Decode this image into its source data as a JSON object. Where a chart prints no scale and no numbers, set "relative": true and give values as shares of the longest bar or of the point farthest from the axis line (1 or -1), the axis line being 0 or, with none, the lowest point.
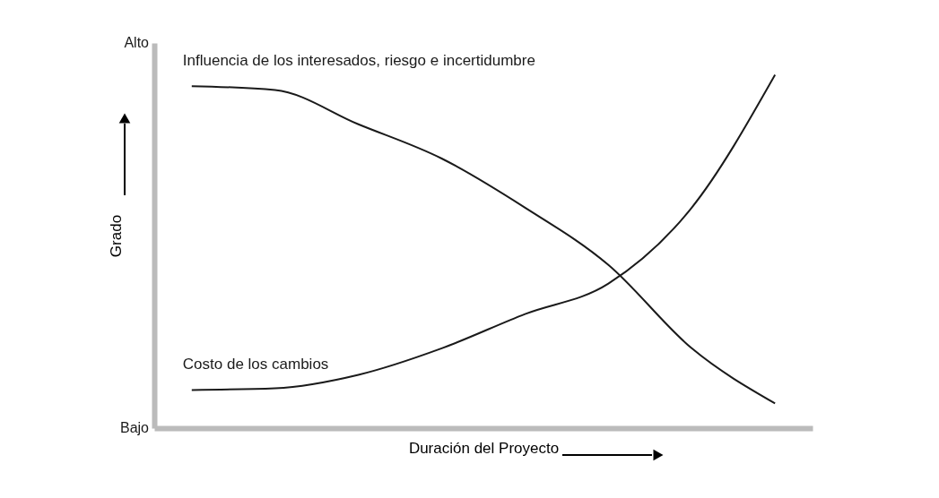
{
  "chart_data": {
    "type": "line",
    "xlabel": "Duración del Proyecto",
    "ylabel": "Grado",
    "relative": true,
    "annotations": [
      "Alto",
      "Bajo"
    ],
    "categories": [
      null,
      null,
      null,
      null,
      null,
      null,
      null,
      null
    ],
    "series": [
      {
        "name": "Influencia de los interesados, riesgo e incertidumbre",
        "color": "#1a1a1a",
        "values": [
          0.968,
          0.957,
          0.86,
          0.763,
          0.624,
          0.462,
          0.226,
          0.07
        ]
      },
      {
        "name": "Costo de los cambios",
        "color": "#1a1a1a",
        "values": [
          0.108,
          0.113,
          0.151,
          0.226,
          0.323,
          0.409,
          0.624,
          1
        ]
      }
    ],
    "grid": false,
    "legend": false,
    "marker": "none",
    "line_style": "solid"
  }
}
